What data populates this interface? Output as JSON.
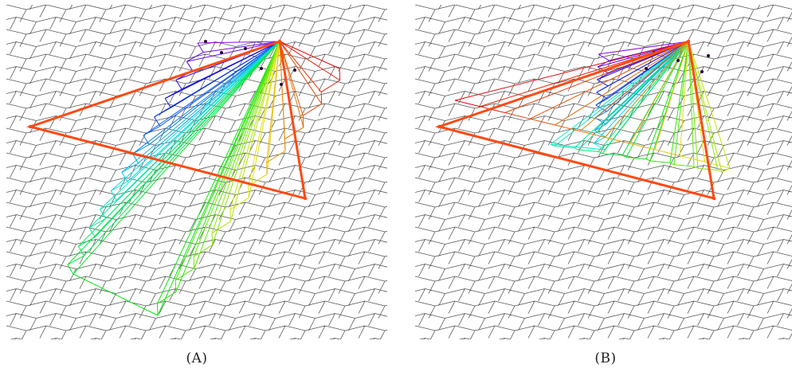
{
  "figure": {
    "colors": {
      "background": "#ffffff",
      "tiling_stroke": "#555555",
      "triangle_stroke": "#ff4a14",
      "vertex_mark": "#2a0038"
    },
    "palette": "rainbow",
    "panels": [
      {
        "id": "a",
        "caption_open": "(",
        "caption_letter": "A",
        "caption_close": ")"
      },
      {
        "id": "b",
        "caption_open": "(",
        "caption_letter": "B",
        "caption_close": ")"
      }
    ]
  }
}
